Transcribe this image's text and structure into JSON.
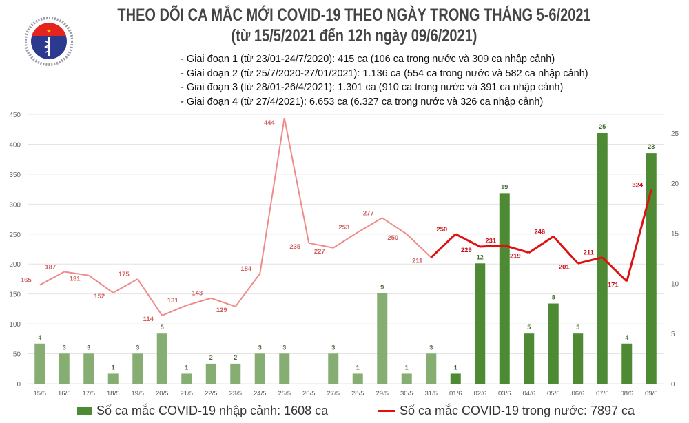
{
  "header": {
    "title": "THEO DÕI CA MẮC MỚI COVID-19 THEO NGÀY TRONG THÁNG 5-6/2021",
    "subtitle": "(từ 15/5/2021 đến 12h ngày 09/6/2021)",
    "logo_text": "BỘ Y TẾ · MINISTRY OF HEALTH"
  },
  "notes": [
    "- Giai đoạn 1 (từ 23/01-24/7/2020): 415 ca (106 ca trong nước và 309 ca nhập cảnh)",
    "- Giai đoạn 2 (từ 25/7/2020-27/01/2021): 1.136 ca (554 ca trong nước và 582 ca nhập cảnh)",
    "- Giai đoạn 3 (từ 28/01-26/4/2021): 1.301 ca (910 ca trong nước và 391 ca nhập cảnh)",
    "- Giai đoạn 4 (từ 27/4/2021): 6.653 ca (6.327 ca trong nước và 326 ca nhập cảnh)"
  ],
  "chart_data": {
    "type": "bar+line",
    "categories": [
      "15/5",
      "16/5",
      "17/5",
      "18/5",
      "19/5",
      "20/5",
      "21/5",
      "22/5",
      "23/5",
      "24/5",
      "25/5",
      "26/5",
      "27/5",
      "28/5",
      "29/5",
      "30/5",
      "31/5",
      "01/6",
      "02/6",
      "03/6",
      "04/6",
      "05/6",
      "06/6",
      "07/6",
      "08/6",
      "09/6"
    ],
    "series": [
      {
        "name": "Số ca mắc COVID-19 nhập cảnh: 1608 ca",
        "type": "bar",
        "axis": "right",
        "values": [
          4,
          3,
          3,
          1,
          3,
          5,
          1,
          2,
          2,
          3,
          3,
          0,
          3,
          1,
          9,
          1,
          3,
          1,
          12,
          19,
          5,
          8,
          5,
          25,
          4,
          23
        ],
        "color_old": "#86ad72",
        "color_new": "#4d8a33"
      },
      {
        "name": "Số ca mắc COVID-19 trong nước: 7897 ca",
        "type": "line",
        "axis": "left",
        "values": [
          165,
          187,
          181,
          152,
          175,
          114,
          131,
          143,
          129,
          184,
          444,
          235,
          227,
          253,
          277,
          250,
          211,
          250,
          229,
          231,
          219,
          246,
          201,
          211,
          171,
          324
        ],
        "color_old": "#f08a8a",
        "color_new": "#e01010"
      }
    ],
    "left_axis": {
      "range": [
        0,
        450
      ],
      "ticks": [
        0,
        50,
        100,
        150,
        200,
        250,
        300,
        350,
        400,
        450
      ]
    },
    "right_axis": {
      "range": [
        0,
        25
      ],
      "ticks": [
        0,
        5,
        10,
        15,
        20,
        25
      ]
    },
    "grid": true,
    "legend": "bottom"
  }
}
